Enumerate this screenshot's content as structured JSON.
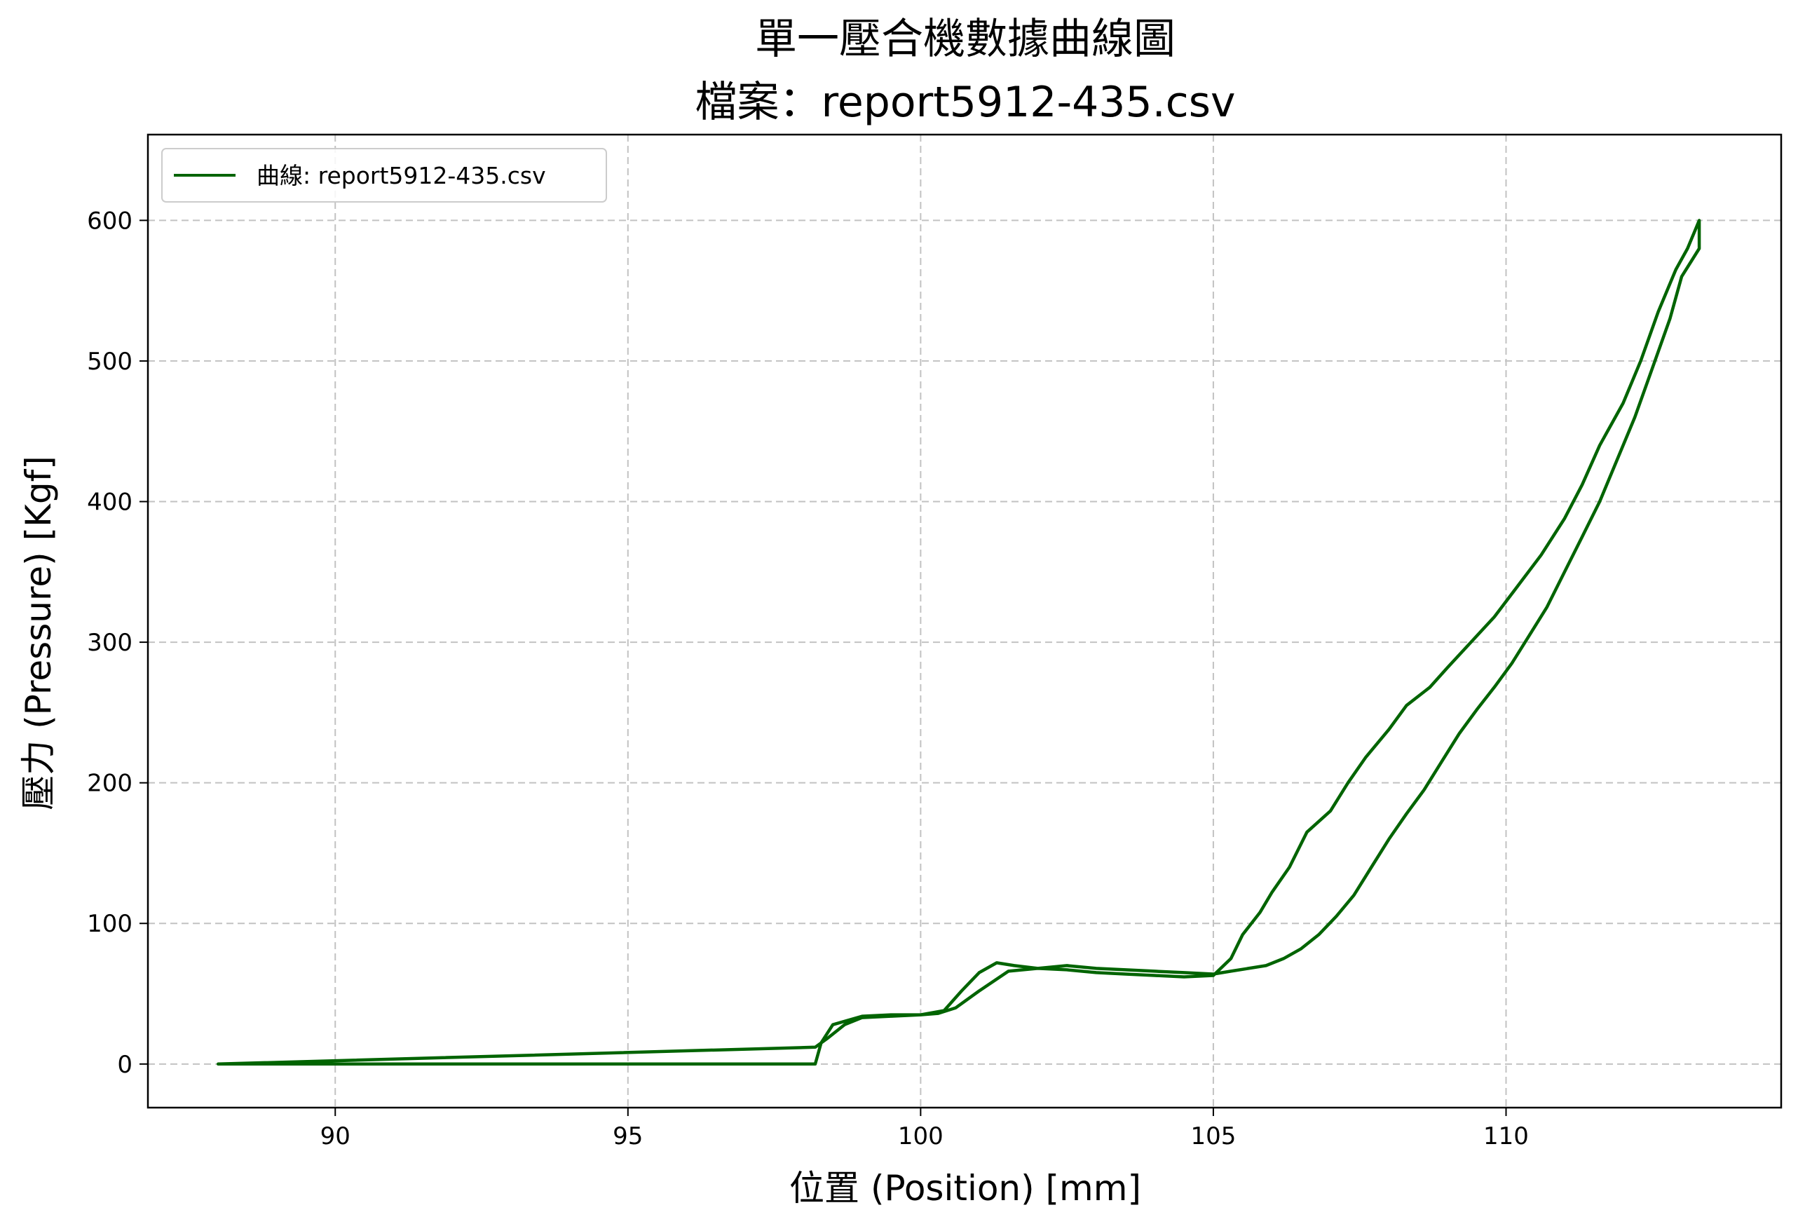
{
  "chart_data": {
    "type": "line",
    "title": "單一壓合機數據曲線圖",
    "subtitle": "檔案：report5912-435.csv",
    "xlabel": "位置 (Position) [mm]",
    "ylabel": "壓力 (Pressure) [Kgf]",
    "xlim": [
      86.8,
      114.7
    ],
    "ylim": [
      -31,
      661
    ],
    "xticks": [
      90,
      95,
      100,
      105,
      110
    ],
    "yticks": [
      0,
      100,
      200,
      300,
      400,
      500,
      600
    ],
    "grid": true,
    "legend_position": "top-left",
    "series": [
      {
        "name": "曲線: report5912-435.csv",
        "color": "#006400",
        "x": [
          88.0,
          90.0,
          92.0,
          94.0,
          96.0,
          97.5,
          98.2,
          98.3,
          98.5,
          99.0,
          99.5,
          100.0,
          100.4,
          100.7,
          101.0,
          101.3,
          101.6,
          102.0,
          102.5,
          103.0,
          103.5,
          104.0,
          104.5,
          105.0,
          105.3,
          105.5,
          105.8,
          106.0,
          106.3,
          106.6,
          107.0,
          107.3,
          107.6,
          108.0,
          108.3,
          108.7,
          109.0,
          109.4,
          109.8,
          110.2,
          110.6,
          111.0,
          111.3,
          111.6,
          112.0,
          112.3,
          112.6,
          112.9,
          113.1,
          113.3,
          113.3,
          113.0,
          112.8,
          112.5,
          112.2,
          111.9,
          111.6,
          111.3,
          111.0,
          110.7,
          110.4,
          110.1,
          109.8,
          109.5,
          109.2,
          108.9,
          108.6,
          108.3,
          108.0,
          107.7,
          107.4,
          107.1,
          106.8,
          106.5,
          106.2,
          105.9,
          105.6,
          105.3,
          105.0,
          104.5,
          104.0,
          103.5,
          103.0,
          102.5,
          102.0,
          101.5,
          101.0,
          100.6,
          100.3,
          100.0,
          99.5,
          99.0,
          98.7,
          98.4,
          98.2,
          88.0
        ],
        "y": [
          0,
          0,
          0,
          0,
          0,
          0,
          0,
          15,
          28,
          34,
          35,
          35,
          38,
          52,
          65,
          72,
          70,
          68,
          67,
          65,
          64,
          63,
          62,
          63,
          75,
          92,
          108,
          122,
          140,
          165,
          180,
          200,
          218,
          238,
          255,
          268,
          282,
          300,
          318,
          340,
          362,
          388,
          412,
          440,
          470,
          500,
          535,
          565,
          580,
          600,
          580,
          560,
          530,
          495,
          460,
          430,
          400,
          375,
          350,
          325,
          305,
          285,
          268,
          252,
          235,
          215,
          195,
          178,
          160,
          140,
          120,
          105,
          92,
          82,
          75,
          70,
          68,
          66,
          64,
          65,
          66,
          67,
          68,
          70,
          68,
          66,
          52,
          40,
          36,
          35,
          34,
          33,
          28,
          18,
          12,
          0
        ]
      }
    ]
  }
}
